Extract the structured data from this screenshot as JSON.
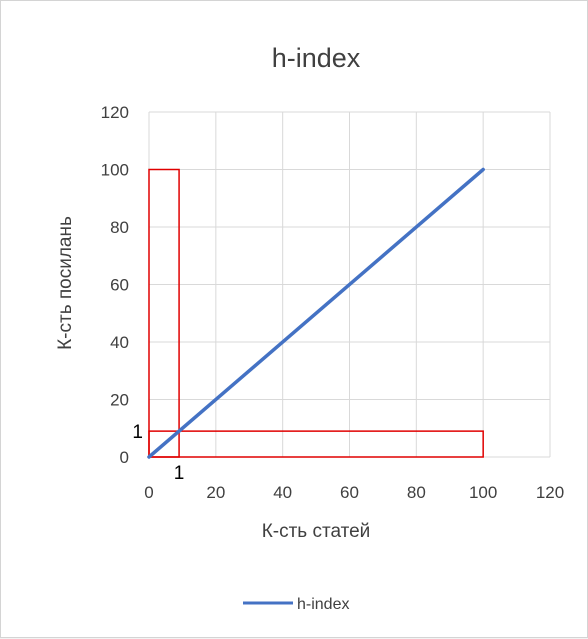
{
  "chart_data": {
    "type": "line",
    "title": "h-index",
    "xlabel": "К-сть статей",
    "ylabel": "К-сть посилань",
    "xlim": [
      0,
      120
    ],
    "ylim": [
      0,
      120
    ],
    "xticks": [
      0,
      20,
      40,
      60,
      80,
      100,
      120
    ],
    "yticks": [
      0,
      20,
      40,
      60,
      80,
      100,
      120
    ],
    "grid": true,
    "legend_position": "bottom",
    "series": [
      {
        "name": "h-index",
        "color": "#4472c4",
        "x": [
          0,
          100
        ],
        "y": [
          0,
          100
        ]
      }
    ],
    "rectangles": [
      {
        "x": [
          0,
          9
        ],
        "y": [
          0,
          100
        ],
        "color": "#e00000"
      },
      {
        "x": [
          0,
          100
        ],
        "y": [
          0,
          9
        ],
        "color": "#e00000"
      }
    ],
    "annotations": [
      {
        "text": "1",
        "axis": "y",
        "at": 9
      },
      {
        "text": "1",
        "axis": "x",
        "at": 9
      }
    ]
  }
}
